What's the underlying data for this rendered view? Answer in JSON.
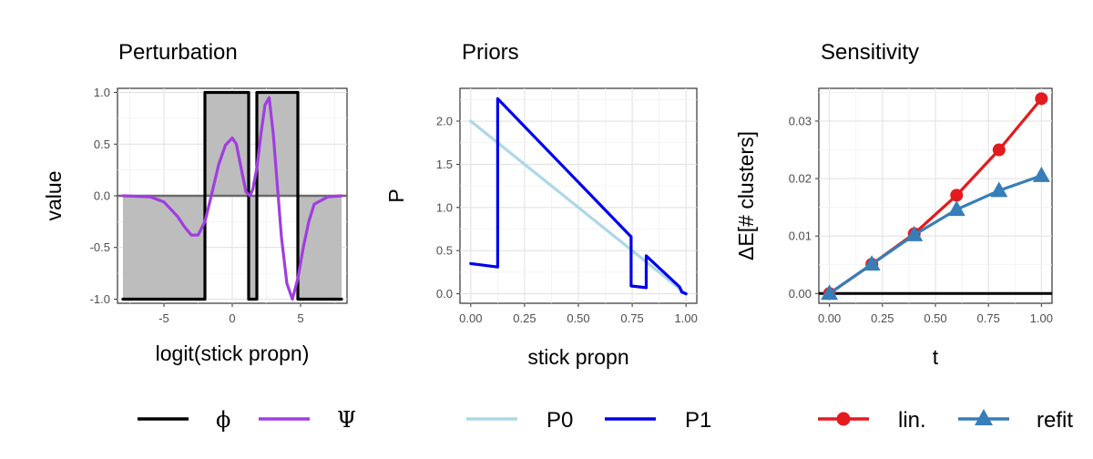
{
  "chart_data": [
    {
      "type": "line",
      "title": "Perturbation",
      "xlabel": "logit(stick propn)",
      "ylabel": "value",
      "xlim": [
        -8.4,
        8.4
      ],
      "ylim": [
        -1.04,
        1.04
      ],
      "x_ticks": [
        -5,
        0,
        5
      ],
      "x_tick_labels": [
        "-5",
        "0",
        "5"
      ],
      "y_ticks": [
        -1.0,
        -0.5,
        0.0,
        0.5,
        1.0
      ],
      "y_tick_labels": [
        "-1.0",
        "-0.5",
        "0.0",
        "0.5",
        "1.0"
      ],
      "grid": true,
      "legend_position": "bottom",
      "series": [
        {
          "name": "ϕ",
          "color": "#000000",
          "x": [
            -8,
            -2,
            -2,
            1.2,
            1.2,
            1.8,
            1.8,
            4.8,
            4.8,
            8
          ],
          "y": [
            -1,
            -1,
            1,
            1,
            -1,
            -1,
            1,
            1,
            -1,
            -1
          ]
        },
        {
          "name": "Ψ",
          "color": "#a03de0",
          "x": [
            -8,
            -6,
            -5,
            -4,
            -3.5,
            -3,
            -2.5,
            -2,
            -1.5,
            -1,
            -0.5,
            0,
            0.3,
            0.6,
            1,
            1.3,
            1.5,
            1.8,
            2.1,
            2.4,
            2.7,
            3,
            3.3,
            3.6,
            4,
            4.4,
            4.8,
            5.2,
            5.6,
            6,
            7,
            8
          ],
          "y": [
            0,
            -0.01,
            -0.06,
            -0.2,
            -0.3,
            -0.38,
            -0.38,
            -0.25,
            0.02,
            0.3,
            0.49,
            0.56,
            0.5,
            0.3,
            0.04,
            0.0,
            0.06,
            0.27,
            0.6,
            0.88,
            0.95,
            0.6,
            0.1,
            -0.4,
            -0.85,
            -1.0,
            -0.8,
            -0.5,
            -0.25,
            -0.08,
            -0.01,
            0
          ]
        }
      ]
    },
    {
      "type": "line",
      "title": "Priors",
      "xlabel": "stick propn",
      "ylabel": "P",
      "xlim": [
        -0.05,
        1.05
      ],
      "ylim": [
        -0.11,
        2.38
      ],
      "x_ticks": [
        0,
        0.25,
        0.5,
        0.75,
        1
      ],
      "x_tick_labels": [
        "0.00",
        "0.25",
        "0.50",
        "0.75",
        "1.00"
      ],
      "y_ticks": [
        0,
        0.5,
        1,
        1.5,
        2
      ],
      "y_tick_labels": [
        "0.0",
        "0.5",
        "1.0",
        "1.5",
        "2.0"
      ],
      "grid": true,
      "legend_position": "bottom",
      "series": [
        {
          "name": "P0",
          "color": "#add8e6",
          "x": [
            0,
            1
          ],
          "y": [
            2.0,
            0.0
          ]
        },
        {
          "name": "P1",
          "color": "#0000ee",
          "x": [
            0,
            0.125,
            0.125,
            0.745,
            0.745,
            0.815,
            0.815,
            0.97,
            0.98,
            1.0
          ],
          "y": [
            0.35,
            0.31,
            2.26,
            0.66,
            0.09,
            0.07,
            0.44,
            0.08,
            0.02,
            0.0
          ]
        }
      ]
    },
    {
      "type": "line",
      "title": "Sensitivity",
      "xlabel": "t",
      "ylabel": "ΔE[# clusters]",
      "xlim": [
        -0.05,
        1.05
      ],
      "ylim": [
        -0.0017,
        0.0357
      ],
      "x_ticks": [
        0,
        0.25,
        0.5,
        0.75,
        1
      ],
      "x_tick_labels": [
        "0.00",
        "0.25",
        "0.50",
        "0.75",
        "1.00"
      ],
      "y_ticks": [
        0,
        0.01,
        0.02,
        0.03
      ],
      "y_tick_labels": [
        "0.00",
        "0.01",
        "0.02",
        "0.03"
      ],
      "grid": true,
      "legend_position": "bottom",
      "hline": 0,
      "series": [
        {
          "name": "lin.",
          "color": "#e41a1c",
          "marker": "circle",
          "x": [
            0,
            0.2,
            0.4,
            0.6,
            0.8,
            1.0
          ],
          "y": [
            0,
            0.0051,
            0.0104,
            0.0171,
            0.025,
            0.0339
          ]
        },
        {
          "name": "refit",
          "color": "#377eb8",
          "marker": "triangle",
          "x": [
            0,
            0.2,
            0.4,
            0.6,
            0.8,
            1.0
          ],
          "y": [
            0,
            0.0051,
            0.0102,
            0.0146,
            0.0179,
            0.0205
          ]
        }
      ]
    }
  ]
}
